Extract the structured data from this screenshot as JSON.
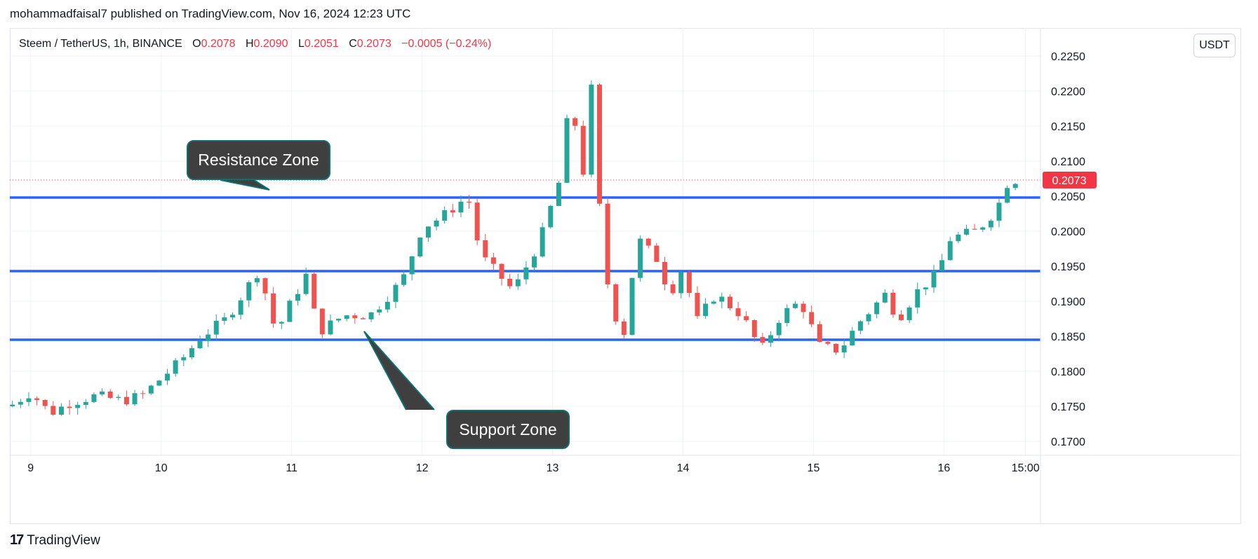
{
  "header": {
    "text": "mohammadfaisal7 published on TradingView.com, Nov 16, 2024 12:23 UTC"
  },
  "legend": {
    "symbol": "Steem / TetherUS, 1h, BINANCE",
    "o_label": "O",
    "o_value": "0.2078",
    "h_label": "H",
    "h_value": "0.2090",
    "l_label": "L",
    "l_value": "0.2051",
    "c_label": "C",
    "c_value": "0.2073",
    "change": "−0.0005 (−0.24%)"
  },
  "unit_button": "USDT",
  "annotations": {
    "resistance": "Resistance Zone",
    "support": "Support Zone"
  },
  "footer": {
    "logo": "17",
    "brand": "TradingView"
  },
  "colors": {
    "up": "#26a69a",
    "down": "#ef5350",
    "zone_line": "#2962ff",
    "price_tag": "#f23645"
  },
  "chart_data": {
    "type": "candlestick",
    "interval": "1h",
    "y_ticks": [
      "0.1700",
      "0.1750",
      "0.1800",
      "0.1850",
      "0.1900",
      "0.1950",
      "0.2000",
      "0.2050",
      "0.2100",
      "0.2150",
      "0.2200",
      "0.2250"
    ],
    "x_ticks": [
      {
        "label": "9",
        "day": 9.0
      },
      {
        "label": "10",
        "day": 10.0
      },
      {
        "label": "11",
        "day": 11.0
      },
      {
        "label": "12",
        "day": 12.0
      },
      {
        "label": "13",
        "day": 13.0
      },
      {
        "label": "14",
        "day": 14.0
      },
      {
        "label": "15",
        "day": 15.0
      },
      {
        "label": "16",
        "day": 16.0
      },
      {
        "label": "15:00",
        "day": 16.625
      }
    ],
    "ylim": [
      0.168,
      0.229
    ],
    "xlim": [
      8.84,
      16.74
    ],
    "last_price": "0.2073",
    "zone_lines": [
      {
        "name": "resistance",
        "price": 0.2048
      },
      {
        "name": "mid",
        "price": 0.1943
      },
      {
        "name": "support",
        "price": 0.1845
      }
    ],
    "anchors": [
      [
        8.84,
        0.175
      ],
      [
        9.0,
        0.177
      ],
      [
        9.15,
        0.174
      ],
      [
        9.3,
        0.1755
      ],
      [
        9.5,
        0.1765
      ],
      [
        9.7,
        0.1758
      ],
      [
        9.85,
        0.1765
      ],
      [
        10.0,
        0.179
      ],
      [
        10.15,
        0.1815
      ],
      [
        10.3,
        0.1848
      ],
      [
        10.5,
        0.1875
      ],
      [
        10.75,
        0.1945
      ],
      [
        10.88,
        0.1855
      ],
      [
        11.0,
        0.19
      ],
      [
        11.12,
        0.194
      ],
      [
        11.2,
        0.1855
      ],
      [
        11.4,
        0.188
      ],
      [
        11.6,
        0.188
      ],
      [
        11.85,
        0.193
      ],
      [
        12.0,
        0.2005
      ],
      [
        12.15,
        0.202
      ],
      [
        12.35,
        0.205
      ],
      [
        12.45,
        0.1965
      ],
      [
        12.7,
        0.1915
      ],
      [
        12.9,
        0.1985
      ],
      [
        13.05,
        0.207
      ],
      [
        13.15,
        0.221
      ],
      [
        13.22,
        0.203
      ],
      [
        13.28,
        0.225
      ],
      [
        13.38,
        0.198
      ],
      [
        13.45,
        0.189
      ],
      [
        13.55,
        0.1855
      ],
      [
        13.65,
        0.199
      ],
      [
        13.8,
        0.196
      ],
      [
        13.9,
        0.191
      ],
      [
        14.0,
        0.195
      ],
      [
        14.1,
        0.187
      ],
      [
        14.25,
        0.191
      ],
      [
        14.45,
        0.188
      ],
      [
        14.6,
        0.183
      ],
      [
        14.75,
        0.188
      ],
      [
        14.9,
        0.19
      ],
      [
        15.05,
        0.1835
      ],
      [
        15.2,
        0.183
      ],
      [
        15.35,
        0.187
      ],
      [
        15.55,
        0.191
      ],
      [
        15.65,
        0.1875
      ],
      [
        15.8,
        0.1915
      ],
      [
        15.95,
        0.194
      ],
      [
        16.05,
        0.199
      ],
      [
        16.25,
        0.2
      ],
      [
        16.4,
        0.203
      ],
      [
        16.5,
        0.2075
      ],
      [
        16.55,
        0.2073
      ]
    ]
  }
}
